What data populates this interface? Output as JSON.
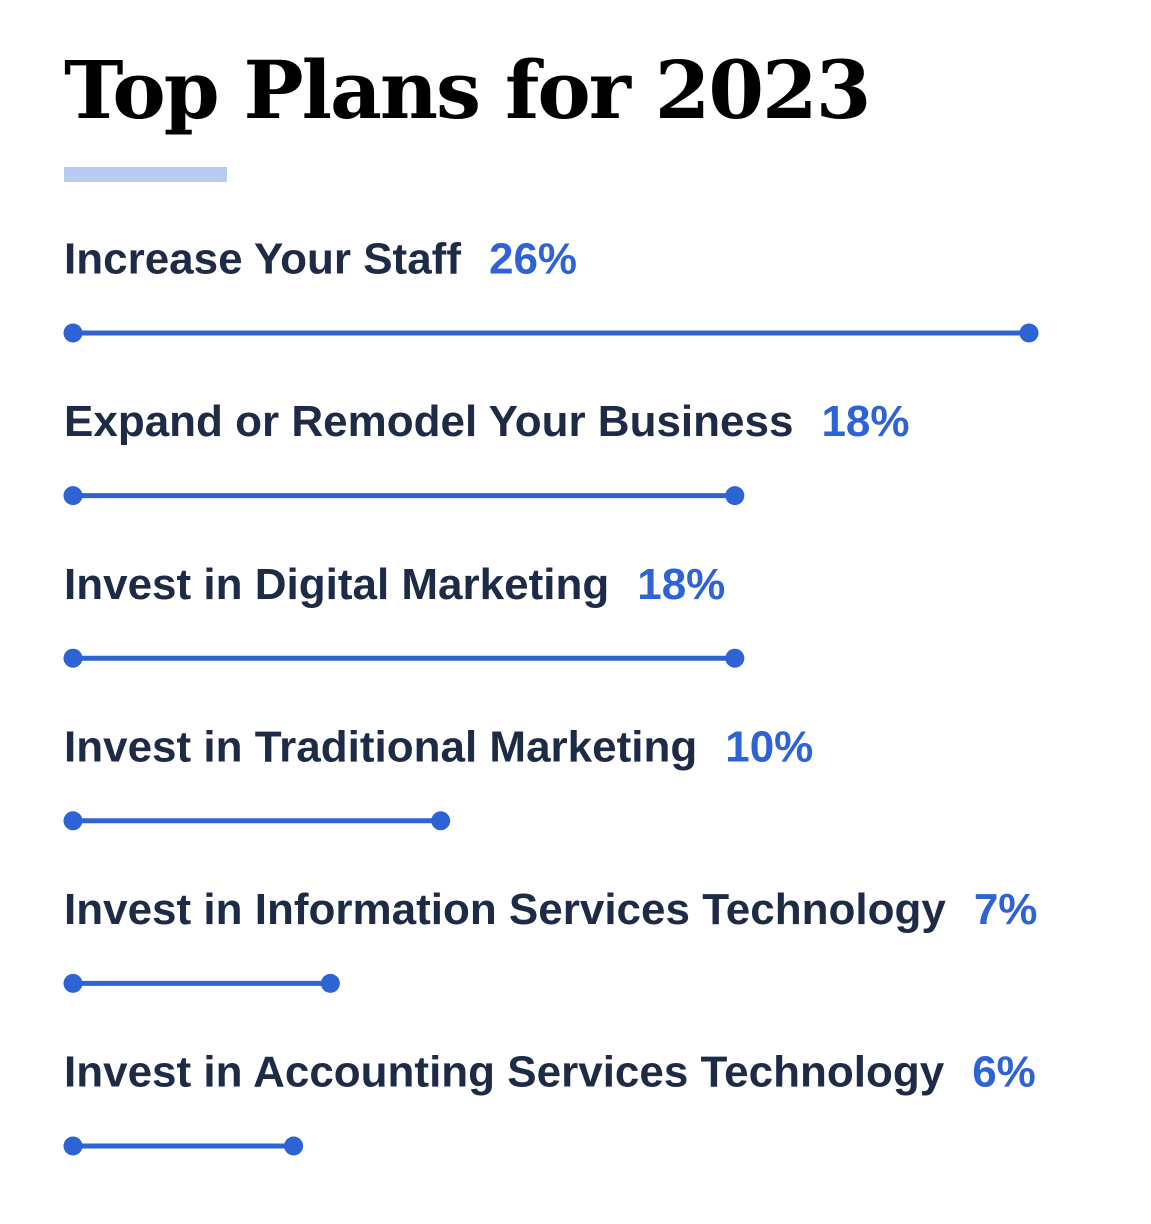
{
  "chart_data": {
    "type": "bar",
    "title": "Top Plans for 2023",
    "categories": [
      "Increase Your Staff",
      "Expand or Remodel Your Business",
      "Invest in Digital Marketing",
      "Invest in Traditional Marketing",
      "Invest in Information Services Technology",
      "Invest in Accounting Services Technology"
    ],
    "values": [
      26,
      18,
      18,
      10,
      7,
      6
    ],
    "value_labels": [
      "26%",
      "18%",
      "18%",
      "10%",
      "7%",
      "6%"
    ],
    "orientation": "horizontal",
    "xlim": [
      0,
      26
    ],
    "grid": false,
    "legend": "none"
  },
  "colors": {
    "label": "#1e2b47",
    "accent": "#2e63d6",
    "underline": "#b7ccf0",
    "title": "#000000"
  }
}
